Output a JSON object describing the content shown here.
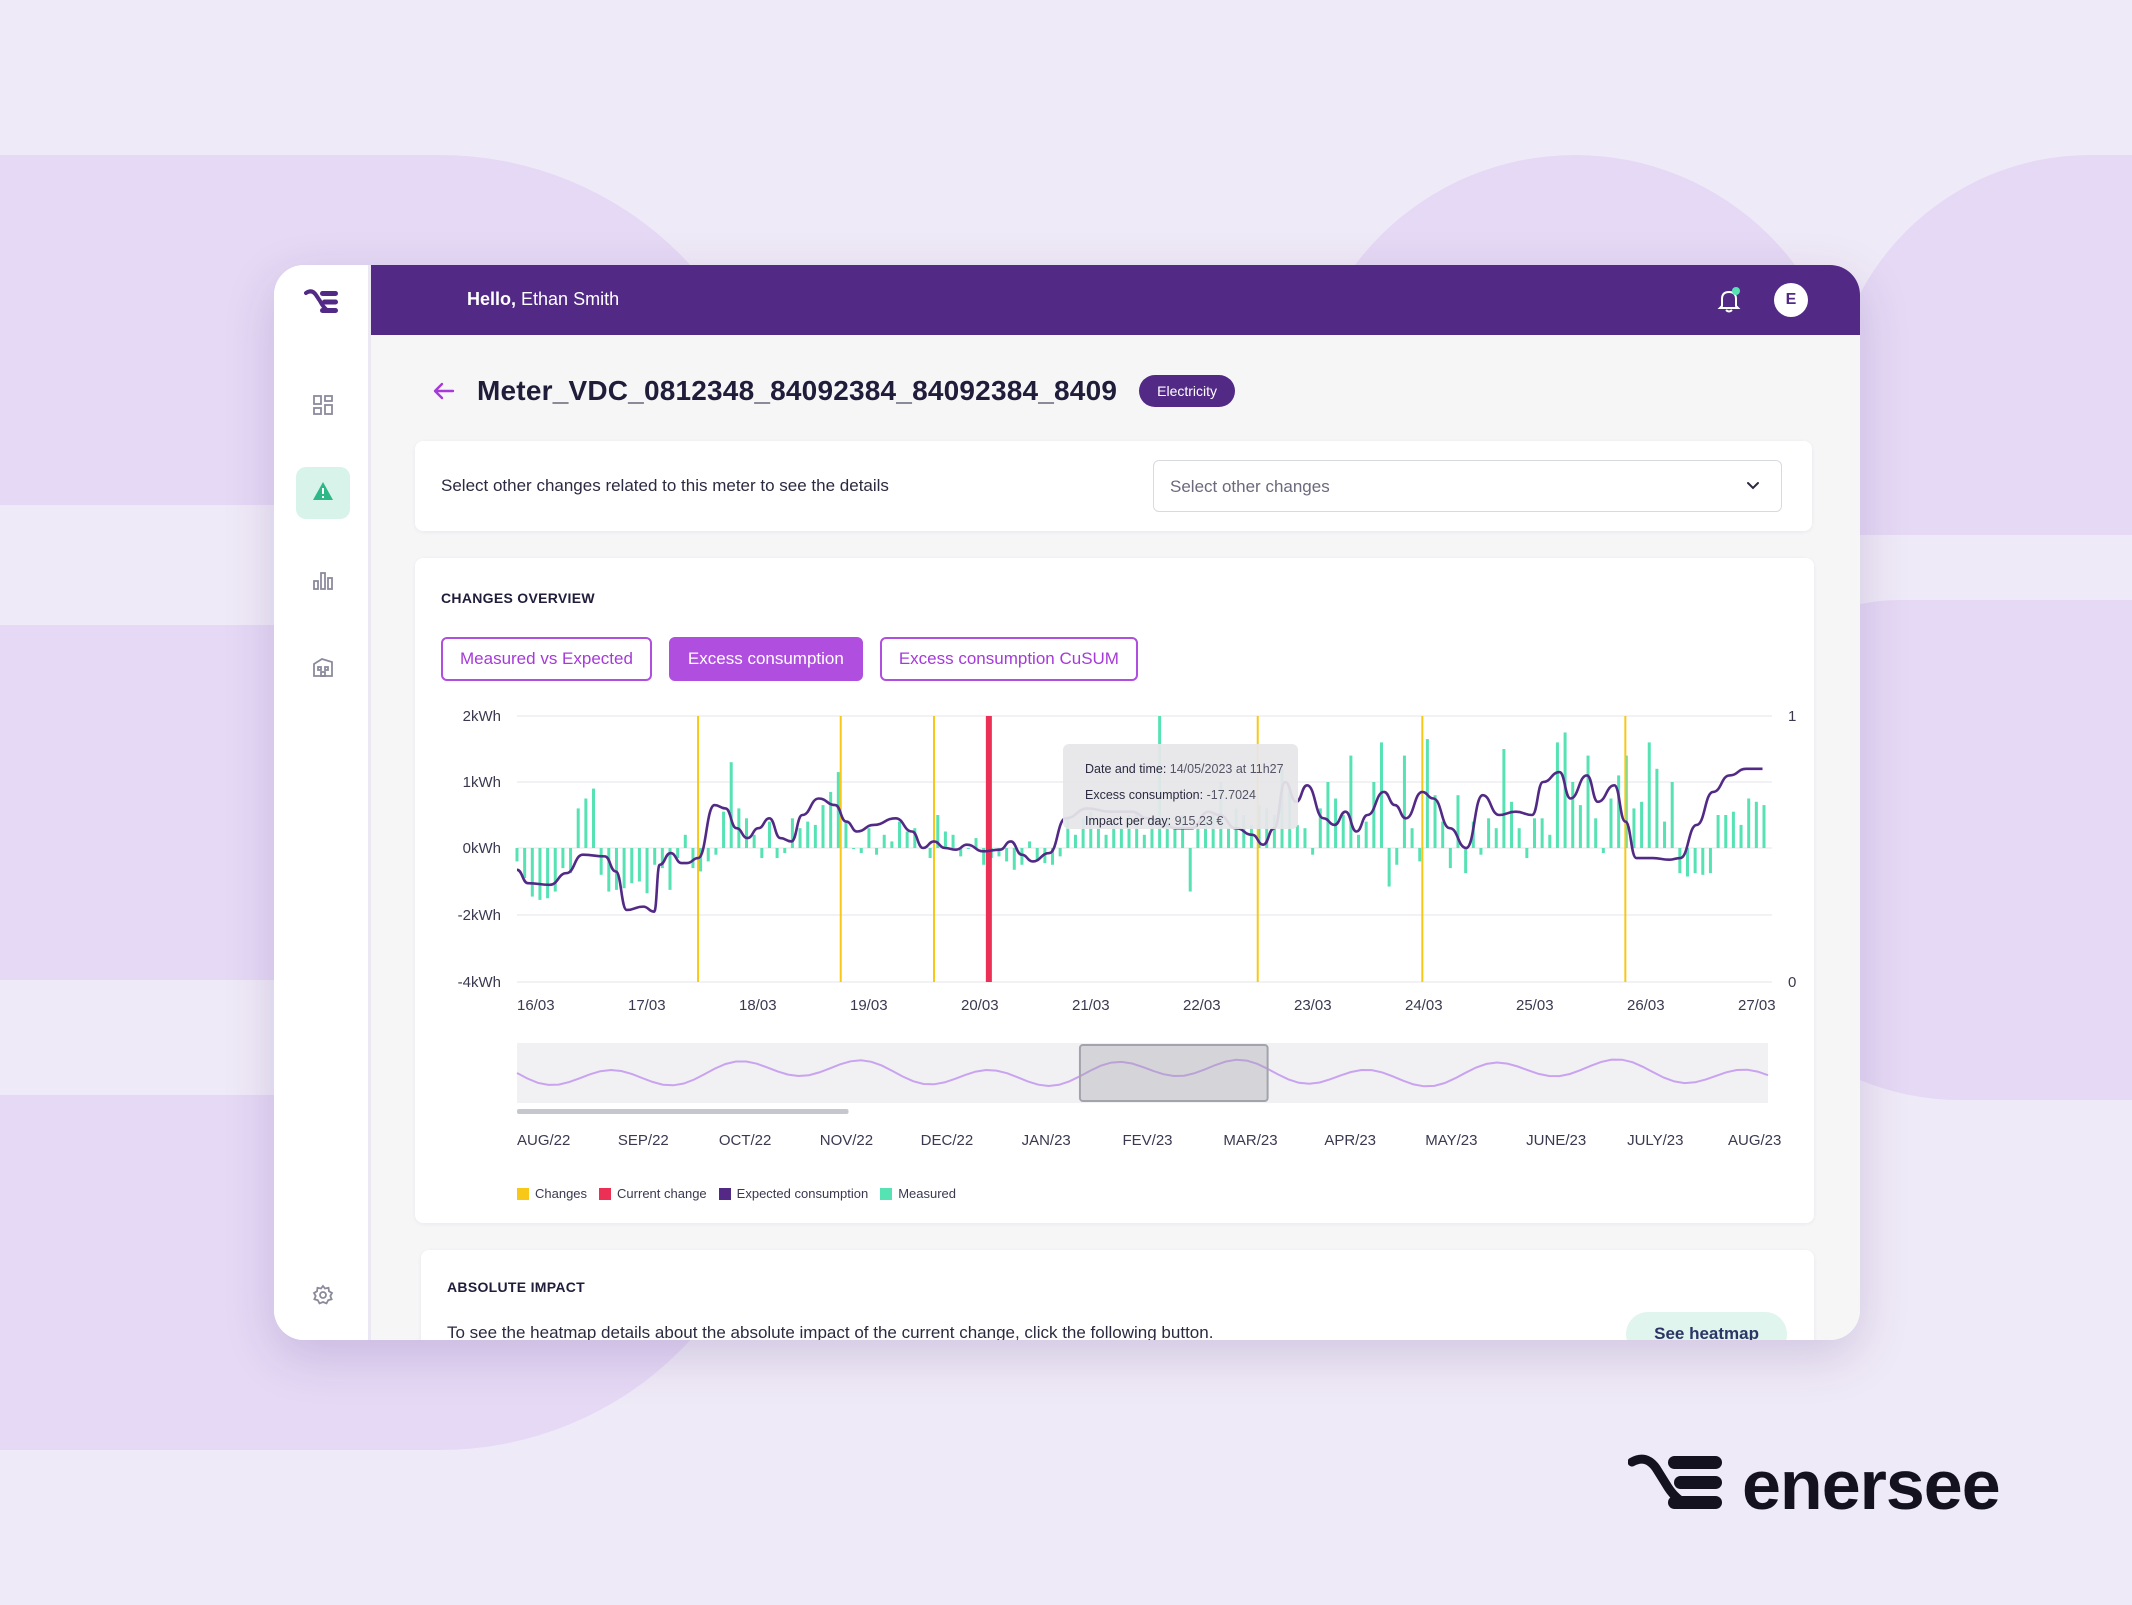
{
  "user": {
    "greeting_prefix": "Hello,",
    "name": "Ethan Smith",
    "avatar_initial": "E"
  },
  "meter": {
    "title": "Meter_VDC_0812348_84092384_84092384_8409",
    "badge": "Electricity"
  },
  "select_changes": {
    "prompt": "Select other changes related to this meter to see the details",
    "placeholder": "Select other changes"
  },
  "overview": {
    "title": "CHANGES OVERVIEW",
    "tabs": [
      {
        "label": "Measured vs Expected",
        "active": false
      },
      {
        "label": "Excess consumption",
        "active": true
      },
      {
        "label": "Excess consumption CuSUM",
        "active": false
      }
    ]
  },
  "tooltip": {
    "date_label": "Date and time:",
    "date_value": "14/05/2023 at 11h27",
    "excess_label": "Excess consumption:",
    "excess_value": "-17.7024",
    "impact_label": "Impact per day:",
    "impact_value": "915,23 €"
  },
  "chart_data": {
    "type": "bar",
    "y_ticks": [
      "2kWh",
      "1kWh",
      "0kWh",
      "-2kWh",
      "-4kWh"
    ],
    "y2_ticks": [
      "1",
      "0"
    ],
    "x_labels": [
      "16/03",
      "17/03",
      "18/03",
      "19/03",
      "20/03",
      "21/03",
      "22/03",
      "23/03",
      "24/03",
      "25/03",
      "26/03",
      "27/03"
    ],
    "x_start": 16,
    "x_end": 27.4,
    "change_markers": [
      17.65,
      18.95,
      19.8,
      22.75,
      24.25,
      26.1
    ],
    "current_change": 20.3,
    "measured": [
      -0.4,
      -0.9,
      -1.45,
      -1.55,
      -1.5,
      -1.3,
      -0.6,
      -0.75,
      0.6,
      0.75,
      0.9,
      -0.8,
      -1.3,
      -1.25,
      -1.2,
      -1.05,
      -1.0,
      -1.35,
      -0.5,
      -0.6,
      -1.25,
      -0.3,
      0.2,
      -0.6,
      -0.7,
      -0.4,
      -0.2,
      0.55,
      1.3,
      0.6,
      0.45,
      0.2,
      -0.3,
      0.4,
      -0.3,
      -0.15,
      0.45,
      0.3,
      0.4,
      0.35,
      0.65,
      0.85,
      1.15,
      0.4,
      0.0,
      -0.15,
      0.3,
      -0.2,
      0.2,
      0.1,
      0.4,
      0.25,
      0.3,
      0.0,
      -0.3,
      0.5,
      0.25,
      0.2,
      -0.25,
      0.0,
      0.15,
      -0.5,
      -0.3,
      -0.25,
      -0.4,
      -0.65,
      -0.5,
      0.1,
      -0.35,
      -0.45,
      -0.5,
      -0.25,
      0.45,
      0.2,
      0.45,
      0.55,
      0.3,
      0.2,
      0.4,
      0.3,
      0.5,
      0.55,
      0.2,
      0.4,
      2.0,
      0.45,
      0.3,
      0.5,
      -1.3,
      0.3,
      0.45,
      0.5,
      1.0,
      0.3,
      0.6,
      0.5,
      0.35,
      0.65,
      0.6,
      0.5,
      1.2,
      0.9,
      0.35,
      0.3,
      -0.2,
      0.6,
      1.0,
      0.75,
      0.5,
      1.4,
      0.2,
      0.4,
      1.0,
      1.6,
      -1.15,
      -0.5,
      1.4,
      0.3,
      -0.4,
      1.65,
      0.8,
      0.4,
      -0.6,
      0.8,
      -0.75,
      0.4,
      -0.2,
      0.45,
      0.3,
      1.5,
      0.7,
      0.3,
      -0.3,
      0.45,
      0.45,
      0.2,
      1.6,
      1.75,
      1.0,
      0.65,
      1.4,
      0.45,
      -0.15,
      0.75,
      1.1,
      1.4,
      0.6,
      0.7,
      1.6,
      1.2,
      0.4,
      1.0,
      -0.75,
      -0.85,
      -0.75,
      -0.8,
      -0.75,
      0.5,
      0.5,
      0.55,
      0.35,
      0.75,
      0.7,
      0.65
    ],
    "expected": [
      [
        16,
        -0.65
      ],
      [
        16.1,
        -1.05
      ],
      [
        16.3,
        -1.1
      ],
      [
        16.45,
        -0.75
      ],
      [
        16.6,
        -0.2
      ],
      [
        16.8,
        -0.25
      ],
      [
        16.9,
        -0.7
      ],
      [
        17,
        -1.85
      ],
      [
        17.15,
        -1.75
      ],
      [
        17.25,
        -1.9
      ],
      [
        17.3,
        -0.5
      ],
      [
        17.4,
        -0.15
      ],
      [
        17.5,
        -0.45
      ],
      [
        17.55,
        -0.45
      ],
      [
        17.65,
        -0.3
      ],
      [
        17.8,
        0.65
      ],
      [
        17.9,
        0.6
      ],
      [
        18.0,
        0.3
      ],
      [
        18.1,
        0.15
      ],
      [
        18.2,
        0.3
      ],
      [
        18.3,
        0.45
      ],
      [
        18.4,
        0.15
      ],
      [
        18.5,
        0.1
      ],
      [
        18.6,
        0.5
      ],
      [
        18.75,
        0.75
      ],
      [
        18.9,
        0.65
      ],
      [
        19.0,
        0.4
      ],
      [
        19.1,
        0.25
      ],
      [
        19.25,
        0.35
      ],
      [
        19.45,
        0.45
      ],
      [
        19.6,
        0.25
      ],
      [
        19.7,
        0.0
      ],
      [
        19.8,
        0.1
      ],
      [
        19.9,
        0.0
      ],
      [
        20.0,
        -0.05
      ],
      [
        20.1,
        0.05
      ],
      [
        20.25,
        -0.1
      ],
      [
        20.4,
        -0.05
      ],
      [
        20.5,
        0.1
      ],
      [
        20.6,
        -0.2
      ],
      [
        20.7,
        -0.4
      ],
      [
        20.85,
        -0.15
      ],
      [
        21.0,
        0.45
      ],
      [
        21.2,
        0.6
      ],
      [
        21.4,
        0.55
      ],
      [
        21.6,
        0.55
      ],
      [
        21.75,
        0.45
      ],
      [
        21.9,
        0.35
      ],
      [
        22.0,
        0.3
      ],
      [
        22.15,
        0.3
      ],
      [
        22.3,
        0.55
      ],
      [
        22.4,
        0.5
      ],
      [
        22.55,
        0.3
      ],
      [
        22.7,
        0.2
      ],
      [
        22.8,
        0.05
      ],
      [
        22.9,
        0.3
      ],
      [
        23.0,
        1.0
      ],
      [
        23.1,
        0.7
      ],
      [
        23.2,
        0.95
      ],
      [
        23.35,
        0.45
      ],
      [
        23.45,
        0.35
      ],
      [
        23.55,
        0.55
      ],
      [
        23.65,
        0.25
      ],
      [
        23.75,
        0.5
      ],
      [
        23.9,
        0.85
      ],
      [
        24.0,
        0.65
      ],
      [
        24.1,
        0.45
      ],
      [
        24.25,
        0.85
      ],
      [
        24.35,
        0.75
      ],
      [
        24.5,
        0.3
      ],
      [
        24.65,
        0.0
      ],
      [
        24.8,
        0.8
      ],
      [
        24.95,
        0.5
      ],
      [
        25.1,
        0.55
      ],
      [
        25.25,
        0.5
      ],
      [
        25.35,
        1.0
      ],
      [
        25.5,
        1.15
      ],
      [
        25.6,
        0.75
      ],
      [
        25.75,
        1.1
      ],
      [
        25.85,
        0.7
      ],
      [
        26.0,
        0.95
      ],
      [
        26.1,
        0.4
      ],
      [
        26.2,
        -0.3
      ],
      [
        26.35,
        -0.3
      ],
      [
        26.5,
        -0.35
      ],
      [
        26.6,
        -0.3
      ],
      [
        26.75,
        0.35
      ],
      [
        26.9,
        0.85
      ],
      [
        27.05,
        1.1
      ],
      [
        27.2,
        1.2
      ],
      [
        27.35,
        1.2
      ]
    ],
    "ylim": [
      -4,
      2
    ]
  },
  "navigator": {
    "labels": [
      "AUG/22",
      "SEP/22",
      "OCT/22",
      "NOV/22",
      "DEC/22",
      "JAN/23",
      "FEV/23",
      "MAR/23",
      "APR/23",
      "MAY/23",
      "JUNE/23",
      "JULY/23",
      "AUG/23"
    ],
    "window_start_fraction": 0.45,
    "window_end_fraction": 0.6,
    "scroll_fraction": 0.265
  },
  "legend": [
    {
      "label": "Changes",
      "color": "#f7c818"
    },
    {
      "label": "Current change",
      "color": "#ec2f55"
    },
    {
      "label": "Expected consumption",
      "color": "#522a86"
    },
    {
      "label": "Measured",
      "color": "#57e2b4"
    }
  ],
  "impact": {
    "title": "ABSOLUTE IMPACT",
    "text": "To see the heatmap details about the absolute impact of the current change, click the following button.",
    "button": "See heatmap"
  },
  "brand": {
    "wordmark": "enersee"
  },
  "colors": {
    "primary": "#522a86",
    "accent": "#b04ee0",
    "measured": "#57e2b4",
    "change": "#f7c818",
    "current_change": "#ec2f55"
  }
}
